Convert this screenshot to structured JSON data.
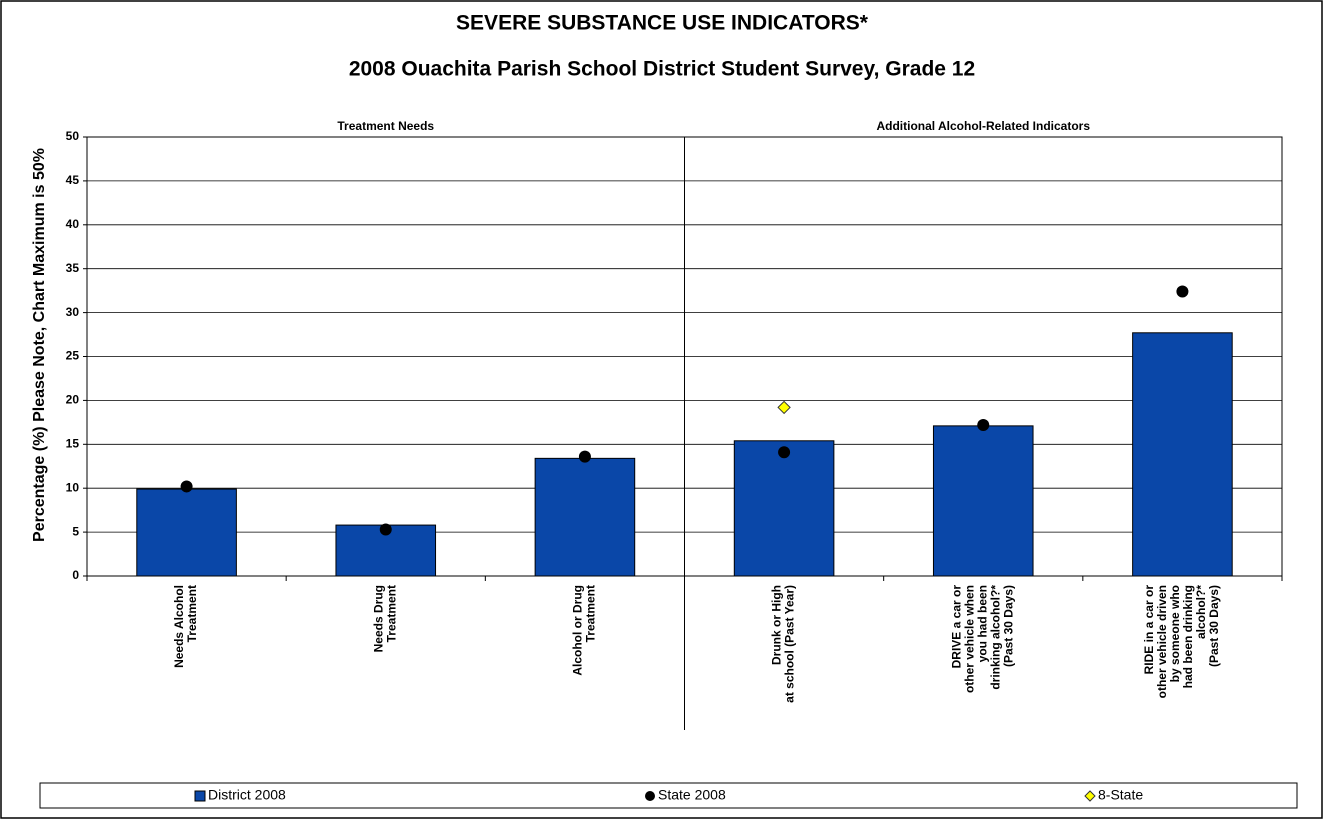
{
  "chart_data": {
    "type": "bar",
    "title": "SEVERE SUBSTANCE USE INDICATORS*",
    "subtitle": "2008 Ouachita Parish School District Student Survey, Grade 12",
    "y_label": "Percentage (%)  Please Note, Chart Maximum is 50%",
    "group_labels": [
      "Treatment Needs",
      "Additional Alcohol-Related Indicators"
    ],
    "categories": [
      "Needs Alcohol\nTreatment",
      "Needs Drug\nTreatment",
      "Alcohol or Drug\nTreatment",
      "Drunk or High\nat school (Past Year)",
      "DRIVE a car or\nother vehicle when\nyou had been\ndrinking alcohol?*\n(Past 30 Days)",
      "RIDE in a car or\nother vehicle driven\nby someone who\nhad been drinking\nalcohol?*\n(Past 30 Days)"
    ],
    "series": [
      {
        "name": "District 2008",
        "marker": "bar",
        "color": "#0a47a8",
        "values": [
          9.9,
          5.8,
          13.4,
          15.4,
          17.1,
          27.7
        ]
      },
      {
        "name": "State 2008",
        "marker": "circle",
        "color": "#000000",
        "values": [
          10.2,
          5.3,
          13.6,
          14.1,
          17.2,
          32.4
        ]
      },
      {
        "name": "8-State",
        "marker": "diamond",
        "color": "#ffff00",
        "values": [
          null,
          null,
          null,
          19.2,
          null,
          null
        ]
      }
    ],
    "ylim": [
      0,
      50
    ],
    "yticks": [
      0,
      5,
      10,
      15,
      20,
      25,
      30,
      35,
      40,
      45,
      50
    ],
    "grid": true
  }
}
